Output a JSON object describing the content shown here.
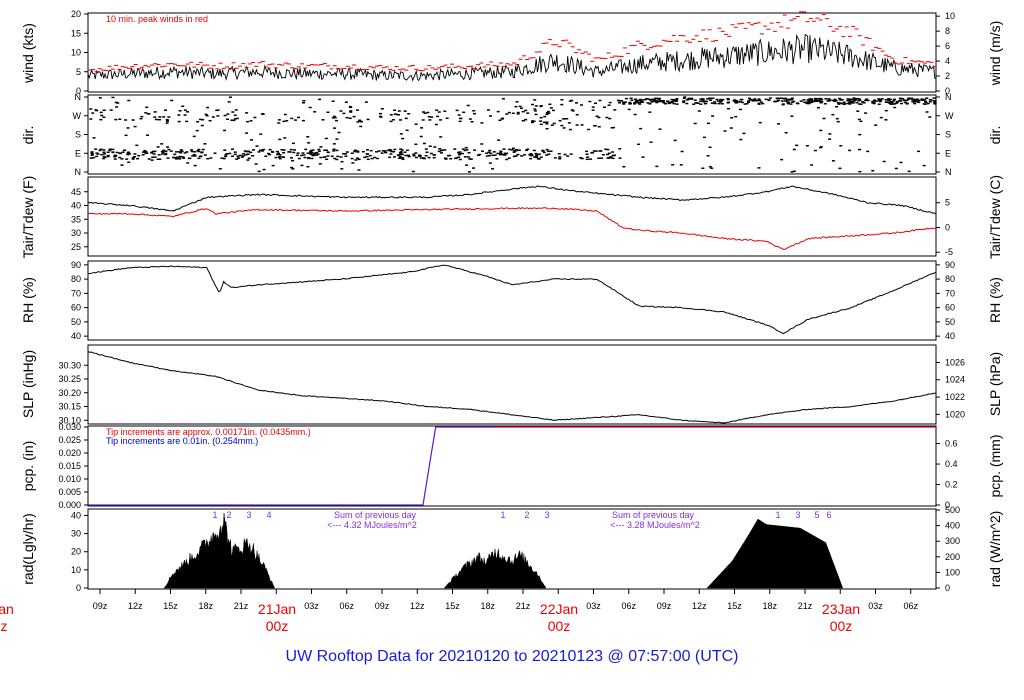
{
  "footer": {
    "title": "UW Rooftop Data for 20210120  to  20210123 @ 07:57:00  (UTC)"
  },
  "colors": {
    "trace": "#000000",
    "red": "#ee0000",
    "blue": "#0000dd",
    "purple": "#8a2be2",
    "title_blue": "#1a1adb"
  },
  "chart_data": [
    {
      "id": "wind",
      "type": "line",
      "ylabel": "wind (kts)",
      "ylabel_right": "wind (m/s)",
      "ylim": [
        0,
        20
      ],
      "yticks": [
        "0",
        "5",
        "10",
        "15",
        "20"
      ],
      "right_ylim": [
        0,
        10.29
      ],
      "right_yticks": [
        "0",
        "2",
        "4",
        "6",
        "8",
        "10"
      ],
      "annotations": [
        "10 min. peak winds in red"
      ],
      "series": [
        {
          "values_x": [
            0,
            0.05,
            0.1,
            0.15,
            0.2,
            0.25,
            0.3,
            0.35,
            0.4,
            0.45,
            0.5,
            0.55,
            0.6,
            0.65,
            0.7,
            0.75,
            0.8,
            0.85,
            0.9,
            0.95,
            1.0
          ],
          "values": [
            4,
            4.5,
            5,
            4.5,
            5,
            4.5,
            4.5,
            4,
            4,
            4.5,
            5,
            8,
            5,
            7,
            8,
            9,
            10,
            11,
            9,
            6,
            5
          ]
        },
        {
          "values_x": [
            0,
            0.05,
            0.1,
            0.15,
            0.2,
            0.25,
            0.3,
            0.35,
            0.4,
            0.45,
            0.5,
            0.55,
            0.6,
            0.65,
            0.7,
            0.75,
            0.8,
            0.85,
            0.9,
            0.95,
            1.0
          ],
          "values": [
            5.5,
            6.5,
            7,
            6.5,
            7,
            6.5,
            6.5,
            6,
            6,
            6.5,
            7,
            13,
            8,
            12,
            14,
            15,
            17,
            19,
            15,
            8,
            7
          ]
        }
      ]
    },
    {
      "id": "dir",
      "type": "scatter",
      "ylabel": "dir.",
      "ylabel_right": "dir.",
      "ylim": [
        0,
        360
      ],
      "yticks": [
        "N",
        "E",
        "S",
        "W",
        "N"
      ],
      "right_yticks": [
        "N",
        "E",
        "S",
        "W",
        "N"
      ]
    },
    {
      "id": "temp",
      "type": "line",
      "ylabel": "Tair/Tdew (F)",
      "ylabel_right": "Tair/Tdew (C)",
      "ylim": [
        22,
        50
      ],
      "yticks": [
        "25",
        "30",
        "35",
        "40",
        "45"
      ],
      "right_ylim": [
        -5.56,
        10
      ],
      "right_yticks": [
        "-5",
        "0",
        "5"
      ],
      "series": [
        {
          "x": [
            0,
            0.05,
            0.1,
            0.14,
            0.2,
            0.3,
            0.4,
            0.45,
            0.5,
            0.53,
            0.58,
            0.65,
            0.7,
            0.75,
            0.8,
            0.83,
            0.88,
            0.92,
            0.96,
            1.0
          ],
          "values": [
            41,
            40,
            38,
            43,
            44,
            43,
            43,
            44,
            46,
            47,
            45,
            43,
            42,
            43,
            45,
            47,
            44,
            41,
            40,
            37
          ]
        },
        {
          "x": [
            0,
            0.05,
            0.1,
            0.14,
            0.15,
            0.2,
            0.3,
            0.4,
            0.5,
            0.55,
            0.6,
            0.63,
            0.65,
            0.7,
            0.75,
            0.8,
            0.82,
            0.85,
            0.9,
            0.95,
            1.0
          ],
          "values": [
            37,
            37,
            36,
            39,
            37,
            38.5,
            38,
            38.5,
            39,
            39,
            38,
            32,
            31,
            30,
            28,
            27,
            24,
            28,
            29,
            30,
            32
          ]
        }
      ]
    },
    {
      "id": "rh",
      "type": "line",
      "ylabel": "RH (%)",
      "ylabel_right": "RH (%)",
      "ylim": [
        38,
        92
      ],
      "yticks": [
        "40",
        "50",
        "60",
        "70",
        "80",
        "90"
      ],
      "right_yticks": [
        "40",
        "50",
        "60",
        "70",
        "80",
        "90"
      ],
      "series": [
        {
          "x": [
            0,
            0.05,
            0.1,
            0.14,
            0.155,
            0.16,
            0.17,
            0.2,
            0.3,
            0.38,
            0.42,
            0.47,
            0.5,
            0.55,
            0.6,
            0.65,
            0.7,
            0.75,
            0.8,
            0.82,
            0.85,
            0.9,
            0.95,
            1.0
          ],
          "values": [
            84,
            88,
            89,
            88,
            70,
            78,
            74,
            76,
            80,
            85,
            90,
            82,
            76,
            80,
            80,
            61,
            60,
            57,
            48,
            42,
            52,
            60,
            72,
            85
          ]
        }
      ]
    },
    {
      "id": "slp",
      "type": "line",
      "ylabel": "SLP (inHg)",
      "ylabel_right": "SLP (hPa)",
      "ylim": [
        30.09,
        30.37
      ],
      "yticks": [
        "30.10",
        "30.15",
        "30.20",
        "30.25",
        "30.30"
      ],
      "right_ylim": [
        1019.0,
        1027.9
      ],
      "right_yticks": [
        "1020",
        "1022",
        "1024",
        "1026"
      ],
      "series": [
        {
          "x": [
            0,
            0.05,
            0.1,
            0.15,
            0.2,
            0.25,
            0.3,
            0.35,
            0.4,
            0.45,
            0.5,
            0.55,
            0.6,
            0.65,
            0.7,
            0.75,
            0.8,
            0.85,
            0.9,
            0.95,
            1.0
          ],
          "values": [
            30.35,
            30.31,
            30.28,
            30.26,
            30.21,
            30.19,
            30.18,
            30.17,
            30.15,
            30.14,
            30.12,
            30.1,
            30.11,
            30.12,
            30.1,
            30.09,
            30.12,
            30.14,
            30.15,
            30.17,
            30.2
          ]
        }
      ]
    },
    {
      "id": "pcp",
      "type": "line",
      "ylabel": "pcp. (in)",
      "ylabel_right": "pcp. (mm)",
      "ylim": [
        0,
        0.03
      ],
      "yticks": [
        "0.000",
        "0.005",
        "0.010",
        "0.015",
        "0.020",
        "0.025",
        "0.030"
      ],
      "right_ylim": [
        0,
        0.762
      ],
      "right_yticks": [
        "0",
        "0.2",
        "0.4",
        "0.6"
      ],
      "annotations": [
        "Tip increments are approx. 0.00171in. (0.0435mm.)",
        "Tip increments are 0.01in. (0.254mm.)"
      ],
      "series": [
        {
          "x": [
            0,
            0.395,
            0.4,
            0.405,
            0.41,
            1.0
          ],
          "values": [
            0,
            0,
            0.01,
            0.02,
            0.03,
            0.03
          ]
        }
      ]
    },
    {
      "id": "rad",
      "type": "area",
      "ylabel": "rad(Lgly/hr)",
      "ylabel_right": "rad (W/m^2)",
      "ylim": [
        0,
        43
      ],
      "yticks": [
        "0",
        "10",
        "20",
        "30",
        "40"
      ],
      "right_ylim": [
        0,
        500
      ],
      "right_yticks": [
        "0",
        "100",
        "200",
        "300",
        "400",
        "500"
      ],
      "annotations": [
        "Sum of previous day",
        "<--- 4.32 MJoules/m^2",
        "Sum of previous day",
        "<--- 3.28 MJoules/m^2"
      ],
      "marker_labels": [
        "1",
        "2",
        "3",
        "4",
        "1",
        "2",
        "3",
        "1",
        "3",
        "5",
        "6"
      ],
      "series": [
        {
          "x": [
            0.09,
            0.1,
            0.13,
            0.15,
            0.16,
            0.17,
            0.19,
            0.21,
            0.22
          ],
          "values": [
            0,
            8,
            20,
            30,
            37,
            20,
            25,
            10,
            0
          ]
        },
        {
          "x": [
            0.42,
            0.44,
            0.46,
            0.47,
            0.48,
            0.5,
            0.51,
            0.53,
            0.54
          ],
          "values": [
            0,
            10,
            17,
            14,
            20,
            15,
            18,
            8,
            0
          ]
        },
        {
          "x": [
            0.73,
            0.76,
            0.78,
            0.79,
            0.8,
            0.84,
            0.87,
            0.89
          ],
          "values": [
            0,
            15,
            30,
            38,
            35,
            33,
            25,
            0
          ]
        }
      ]
    }
  ],
  "xaxis": {
    "tick_labels": [
      "09z",
      "12z",
      "15z",
      "18z",
      "21z",
      "03z",
      "06z",
      "09z",
      "12z",
      "15z",
      "18z",
      "21z",
      "03z",
      "06z",
      "09z",
      "12z",
      "15z",
      "18z",
      "21z",
      "03z",
      "06z"
    ],
    "day_labels": [
      "21Jan",
      "22Jan",
      "23Jan"
    ],
    "hour_labels": [
      "00z",
      "00z",
      "00z"
    ],
    "left_cut_top": "an",
    "left_cut_bottom": "z"
  }
}
